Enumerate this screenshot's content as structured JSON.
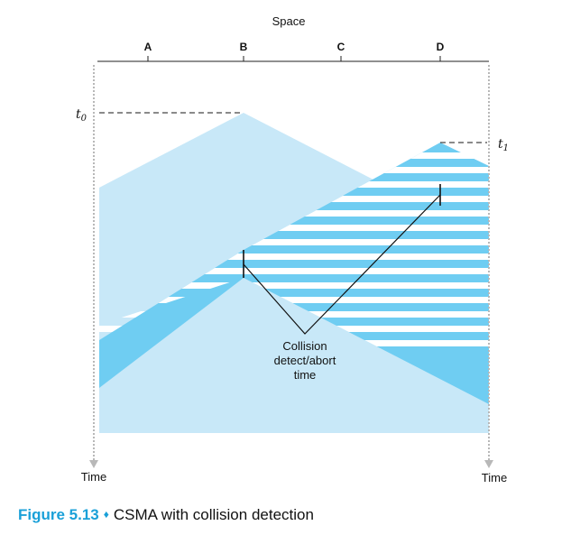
{
  "axis": {
    "space_label": "Space",
    "stations": [
      "A",
      "B",
      "C",
      "D"
    ],
    "time_label_left": "Time",
    "time_label_right": "Time",
    "t0_base": "t",
    "t0_sub": "0",
    "t1_base": "t",
    "t1_sub": "1"
  },
  "annotation": {
    "line1": "Collision",
    "line2": "detect/abort",
    "line3": "time"
  },
  "caption": {
    "figure": "Figure 5.13",
    "symbol": "♦",
    "text": "CSMA with collision detection"
  },
  "colors": {
    "light_signal": "#c8e8f8",
    "dark_signal": "#6fcdf2",
    "stripe": "#ffffff",
    "caption_accent": "#1aa0d8",
    "time_axis": "#b8b8b8"
  }
}
